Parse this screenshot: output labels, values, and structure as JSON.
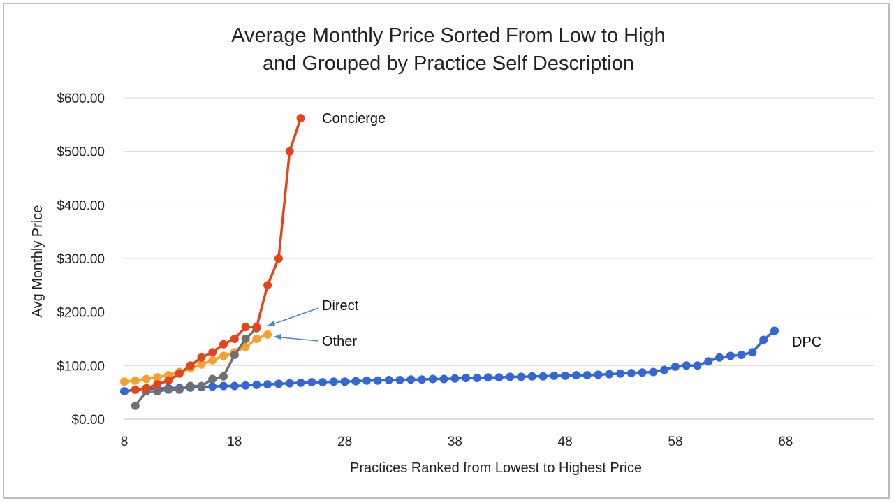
{
  "chart_data": {
    "type": "line",
    "title": [
      "Average Monthly Price Sorted From Low to High",
      "and Grouped by Practice Self Description"
    ],
    "xlabel": "Practices Ranked from Lowest to Highest Price",
    "ylabel": "Avg Monthly Price",
    "xlim": [
      8,
      76
    ],
    "ylim": [
      0,
      600
    ],
    "x_ticks": [
      8,
      18,
      28,
      38,
      48,
      58,
      68
    ],
    "x_tick_labels": [
      "8",
      "18",
      "28",
      "38",
      "48",
      "58",
      "68"
    ],
    "y_ticks": [
      0,
      100,
      200,
      300,
      400,
      500,
      600
    ],
    "y_tick_labels": [
      "$0.00",
      "$100.00",
      "$200.00",
      "$300.00",
      "$400.00",
      "$500.00",
      "$600.00"
    ],
    "grid": "horizontal",
    "legend": "inline labels",
    "series": [
      {
        "name": "DPC",
        "color": "#3366d6",
        "x": [
          8,
          9,
          10,
          11,
          12,
          13,
          14,
          15,
          16,
          17,
          18,
          19,
          20,
          21,
          22,
          23,
          24,
          25,
          26,
          27,
          28,
          29,
          30,
          31,
          32,
          33,
          34,
          35,
          36,
          37,
          38,
          39,
          40,
          41,
          42,
          43,
          44,
          45,
          46,
          47,
          48,
          49,
          50,
          51,
          52,
          53,
          54,
          55,
          56,
          57,
          58,
          59,
          60,
          61,
          62,
          63,
          64,
          65,
          66,
          67
        ],
        "values": [
          52,
          55,
          57,
          57,
          58,
          58,
          59,
          60,
          61,
          62,
          62,
          63,
          64,
          65,
          66,
          67,
          68,
          69,
          69,
          70,
          70,
          71,
          72,
          72,
          73,
          73,
          74,
          74,
          75,
          75,
          76,
          77,
          77,
          78,
          78,
          79,
          79,
          80,
          80,
          81,
          81,
          82,
          82,
          83,
          84,
          85,
          86,
          87,
          88,
          92,
          98,
          100,
          100,
          108,
          115,
          118,
          120,
          125,
          148,
          165
        ]
      },
      {
        "name": "Concierge",
        "color": "#e8421a",
        "x": [
          9,
          10,
          11,
          12,
          13,
          14,
          15,
          16,
          17,
          18,
          19,
          20,
          21,
          22,
          23,
          24
        ],
        "values": [
          55,
          58,
          65,
          72,
          85,
          100,
          115,
          125,
          140,
          150,
          172,
          172,
          250,
          300,
          500,
          562
        ]
      },
      {
        "name": "Direct",
        "color": "#707070",
        "x": [
          9,
          10,
          11,
          12,
          13,
          14,
          15,
          16,
          17,
          18,
          19,
          20
        ],
        "values": [
          25,
          52,
          52,
          55,
          55,
          62,
          62,
          75,
          80,
          120,
          150,
          170
        ]
      },
      {
        "name": "Other",
        "color": "#f7a02c",
        "x": [
          8,
          9,
          10,
          11,
          12,
          13,
          14,
          15,
          16,
          17,
          18,
          19,
          20,
          21
        ],
        "values": [
          70,
          72,
          75,
          78,
          82,
          88,
          95,
          102,
          110,
          118,
          125,
          135,
          150,
          158
        ]
      }
    ]
  }
}
